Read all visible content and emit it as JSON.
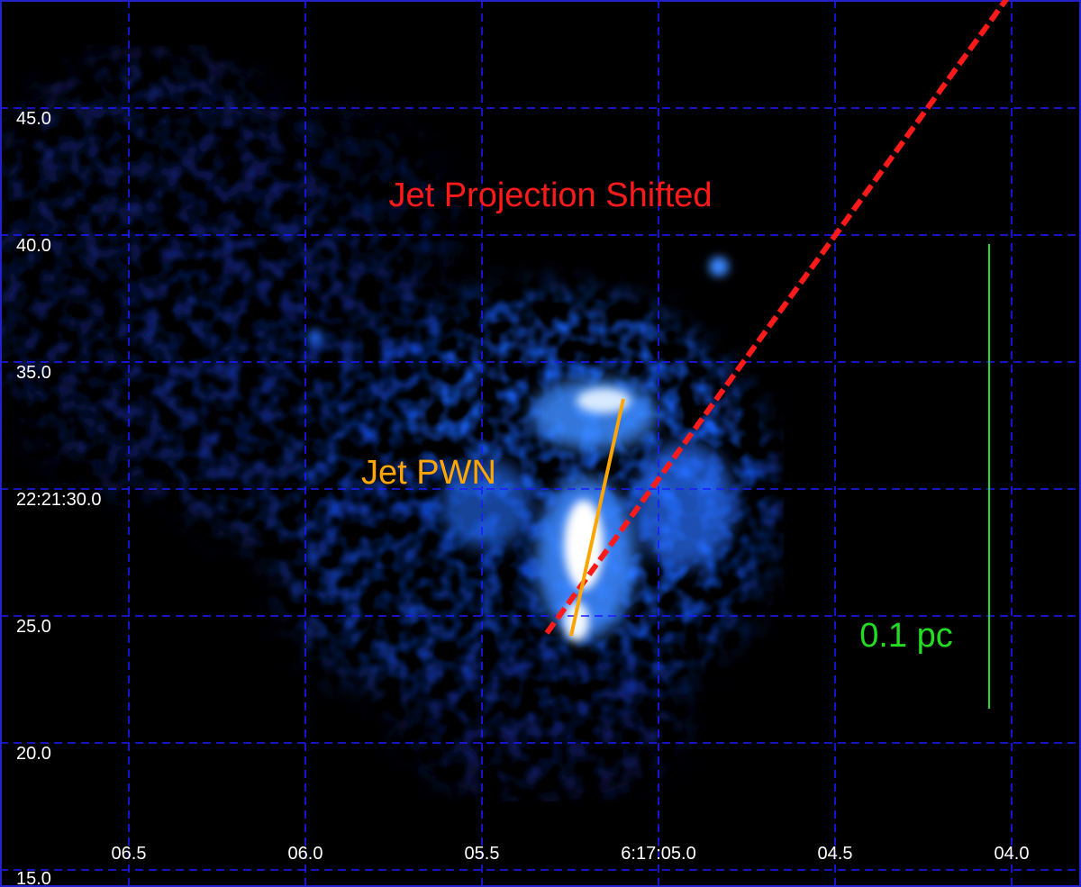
{
  "image": {
    "colors": {
      "background": "#000000",
      "grid": "#1a1aff",
      "frame": "#2222cc",
      "tick_text": "#ffffff",
      "jet_projection": "#ff1a1a",
      "jet_pwn": "#ffa500",
      "scale_bar": "#22dd22"
    }
  },
  "grid": {
    "dec_labels": [
      "45.0",
      "40.0",
      "35.0",
      "22:21:30.0",
      "25.0",
      "20.0",
      "15.0"
    ],
    "ra_labels": [
      "06.5",
      "06.0",
      "05.5",
      "6:17:05.0",
      "04.5",
      "04.0"
    ]
  },
  "annotations": {
    "jet_projection_label": "Jet Projection Shifted",
    "jet_pwn_label": "Jet PWN",
    "scale_label": "0.1 pc"
  }
}
